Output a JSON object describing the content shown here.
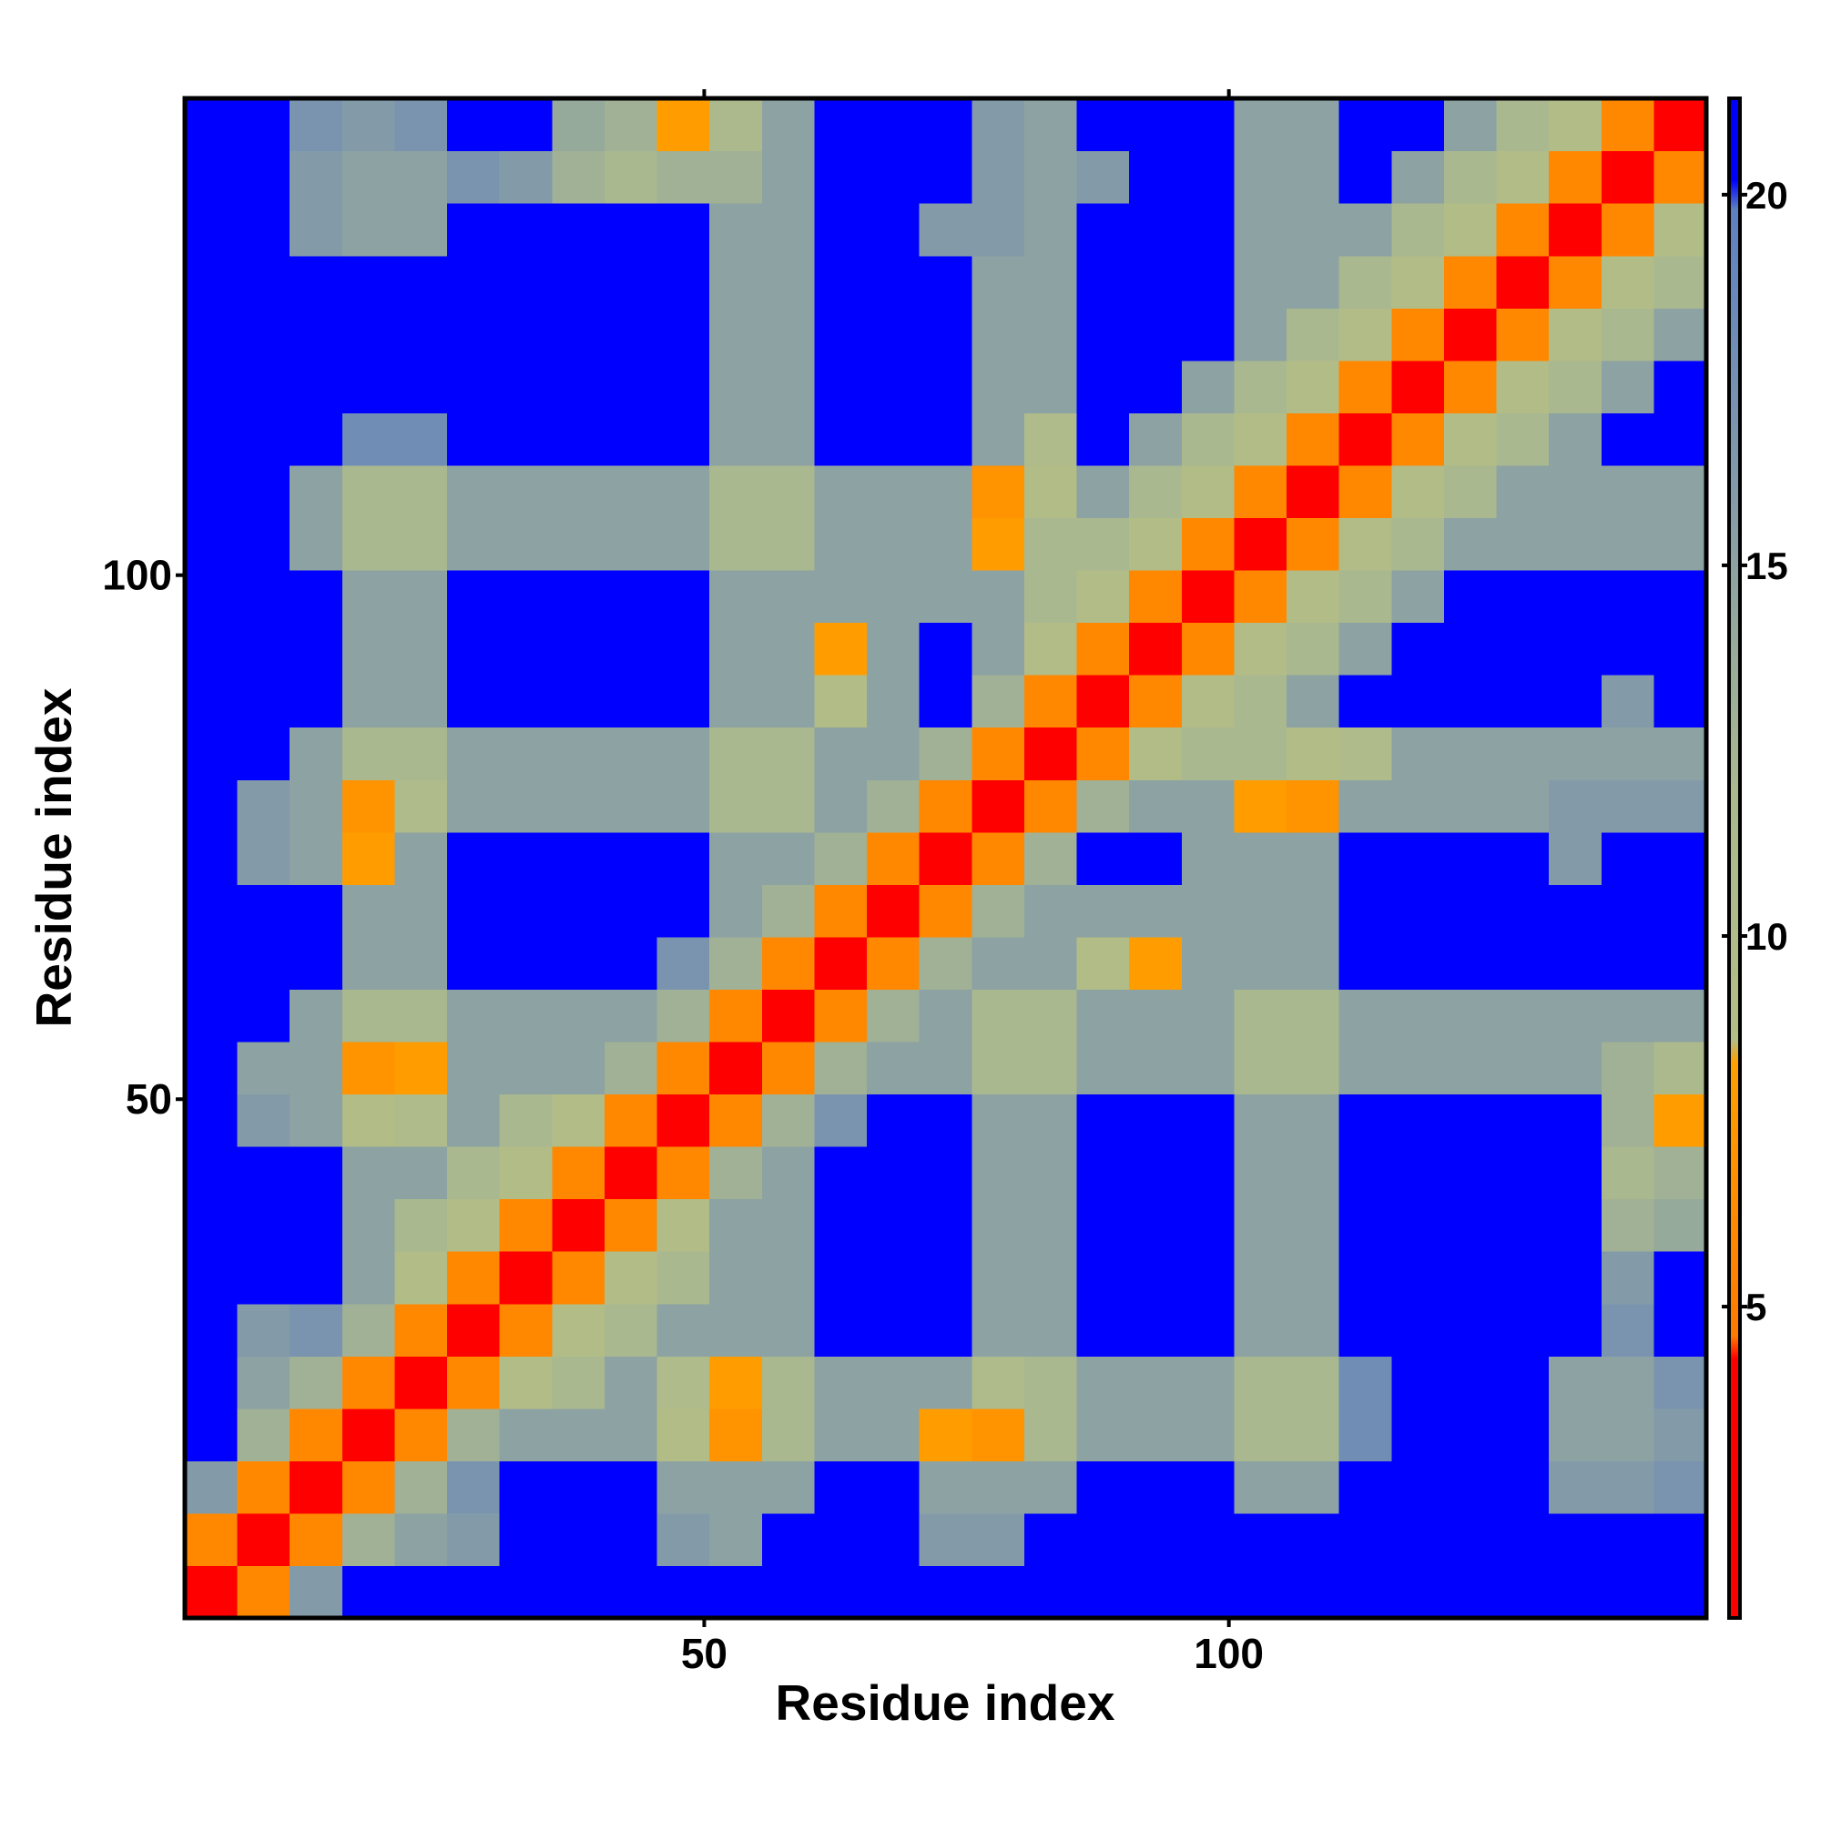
{
  "chart_data": {
    "type": "heatmap",
    "x_label": "Residue index",
    "y_label": "Residue index",
    "x": [
      3,
      8,
      13,
      18,
      23,
      28,
      33,
      38,
      43,
      48,
      53,
      58,
      63,
      68,
      73,
      78,
      83,
      88,
      93,
      98,
      103,
      108,
      113,
      118,
      123,
      128,
      133,
      138,
      143
    ],
    "y": [
      3,
      8,
      13,
      18,
      23,
      28,
      33,
      38,
      43,
      48,
      53,
      58,
      63,
      68,
      73,
      78,
      83,
      88,
      93,
      98,
      103,
      108,
      113,
      118,
      123,
      128,
      133,
      138,
      143
    ],
    "xlim": [
      0.5,
      145.5
    ],
    "ylim": [
      0.5,
      145.5
    ],
    "xticks": [
      50,
      100
    ],
    "yticks": [
      50,
      100
    ],
    "zlim": [
      0.8,
      21.3
    ],
    "zticks": [
      5,
      10,
      15,
      20
    ],
    "colorscale": [
      [
        0.8,
        "#ff0000"
      ],
      [
        4.3,
        "#ff0000"
      ],
      [
        4.6,
        "#ff7a00"
      ],
      [
        8.3,
        "#ffa000"
      ],
      [
        8.6,
        "#b3bd86"
      ],
      [
        12,
        "#a9b88f"
      ],
      [
        19.8,
        "#5f80c2"
      ],
      [
        20.2,
        "#0000ff"
      ],
      [
        21.3,
        "#0000ff"
      ]
    ],
    "z": [
      [
        3,
        6,
        16,
        21,
        21,
        21,
        21,
        21,
        21,
        21,
        21,
        21,
        21,
        21,
        21,
        21,
        21,
        21,
        21,
        21,
        21,
        21,
        21,
        21,
        21,
        21,
        21,
        21,
        21
      ],
      [
        6,
        3,
        6,
        13,
        15,
        16,
        21,
        21,
        21,
        16,
        15,
        21,
        21,
        21,
        16,
        16,
        21,
        21,
        21,
        21,
        21,
        21,
        21,
        21,
        21,
        21,
        21,
        21,
        21
      ],
      [
        16,
        6,
        3,
        6,
        13,
        17,
        21,
        21,
        21,
        15,
        15,
        15,
        21,
        21,
        15,
        15,
        15,
        21,
        21,
        21,
        15,
        15,
        21,
        21,
        21,
        21,
        16,
        16,
        17
      ],
      [
        21,
        13,
        6,
        3,
        6,
        13,
        15,
        15,
        15,
        9,
        7,
        12,
        15,
        15,
        8,
        7,
        12,
        15,
        15,
        15,
        12,
        12,
        18,
        21,
        21,
        21,
        15,
        15,
        16
      ],
      [
        21,
        15,
        13,
        6,
        3,
        6,
        9,
        12,
        15,
        10,
        8,
        12,
        15,
        15,
        15,
        10,
        12,
        15,
        15,
        15,
        12,
        12,
        18,
        21,
        21,
        21,
        15,
        15,
        17
      ],
      [
        21,
        16,
        17,
        13,
        6,
        3,
        6,
        9,
        12,
        15,
        15,
        15,
        21,
        21,
        21,
        15,
        15,
        21,
        21,
        21,
        15,
        15,
        21,
        21,
        21,
        21,
        21,
        17,
        21
      ],
      [
        21,
        21,
        21,
        15,
        9,
        6,
        3,
        6,
        9,
        12,
        15,
        15,
        21,
        21,
        21,
        15,
        15,
        21,
        21,
        21,
        15,
        15,
        21,
        21,
        21,
        21,
        21,
        16,
        21
      ],
      [
        21,
        21,
        21,
        15,
        12,
        9,
        6,
        3,
        6,
        9,
        15,
        15,
        21,
        21,
        21,
        15,
        15,
        21,
        21,
        21,
        15,
        15,
        21,
        21,
        21,
        21,
        21,
        13,
        14
      ],
      [
        21,
        21,
        21,
        15,
        15,
        12,
        9,
        6,
        3,
        6,
        13,
        15,
        21,
        21,
        21,
        15,
        15,
        21,
        21,
        21,
        15,
        15,
        21,
        21,
        21,
        21,
        21,
        12,
        13
      ],
      [
        21,
        16,
        15,
        9,
        10,
        15,
        12,
        9,
        6,
        3,
        6,
        13,
        17,
        21,
        21,
        15,
        15,
        21,
        21,
        21,
        15,
        15,
        21,
        21,
        21,
        21,
        21,
        13,
        8
      ],
      [
        21,
        15,
        15,
        7,
        8,
        15,
        15,
        15,
        13,
        6,
        3,
        6,
        13,
        15,
        15,
        12,
        12,
        15,
        15,
        15,
        12,
        12,
        15,
        15,
        15,
        15,
        15,
        13,
        11
      ],
      [
        21,
        21,
        15,
        12,
        12,
        15,
        15,
        15,
        15,
        13,
        6,
        3,
        6,
        13,
        15,
        12,
        12,
        15,
        15,
        15,
        12,
        12,
        15,
        15,
        15,
        15,
        15,
        15,
        15
      ],
      [
        21,
        21,
        21,
        15,
        15,
        21,
        21,
        21,
        21,
        17,
        13,
        6,
        3,
        6,
        13,
        15,
        15,
        9,
        8,
        15,
        15,
        15,
        21,
        21,
        21,
        21,
        21,
        21,
        21
      ],
      [
        21,
        21,
        21,
        15,
        15,
        21,
        21,
        21,
        21,
        21,
        15,
        13,
        6,
        3,
        6,
        13,
        15,
        15,
        15,
        15,
        15,
        15,
        21,
        21,
        21,
        21,
        21,
        21,
        21
      ],
      [
        21,
        16,
        15,
        8,
        15,
        21,
        21,
        21,
        21,
        21,
        15,
        15,
        13,
        6,
        3,
        6,
        13,
        21,
        21,
        15,
        15,
        15,
        21,
        21,
        21,
        21,
        16,
        21,
        21
      ],
      [
        21,
        16,
        15,
        7,
        10,
        15,
        15,
        15,
        15,
        15,
        12,
        12,
        15,
        13,
        6,
        3,
        6,
        13,
        15,
        15,
        8,
        7,
        15,
        15,
        15,
        15,
        16,
        16,
        16
      ],
      [
        21,
        21,
        15,
        12,
        12,
        15,
        15,
        15,
        15,
        15,
        12,
        12,
        15,
        15,
        13,
        6,
        3,
        6,
        9,
        12,
        12,
        9,
        10,
        15,
        15,
        15,
        15,
        15,
        15
      ],
      [
        21,
        21,
        21,
        15,
        15,
        21,
        21,
        21,
        21,
        21,
        15,
        15,
        9,
        15,
        21,
        13,
        6,
        3,
        6,
        9,
        12,
        15,
        21,
        21,
        21,
        21,
        21,
        16,
        21
      ],
      [
        21,
        21,
        21,
        15,
        15,
        21,
        21,
        21,
        21,
        21,
        15,
        15,
        8,
        15,
        21,
        15,
        9,
        6,
        3,
        6,
        9,
        12,
        15,
        21,
        21,
        21,
        21,
        21,
        21
      ],
      [
        21,
        21,
        21,
        15,
        15,
        21,
        21,
        21,
        21,
        21,
        15,
        15,
        15,
        15,
        15,
        15,
        12,
        9,
        6,
        3,
        6,
        9,
        12,
        15,
        21,
        21,
        21,
        21,
        21
      ],
      [
        21,
        21,
        15,
        12,
        12,
        15,
        15,
        15,
        15,
        15,
        12,
        12,
        15,
        15,
        15,
        8,
        12,
        12,
        9,
        6,
        3,
        6,
        9,
        12,
        15,
        15,
        15,
        15,
        15
      ],
      [
        21,
        21,
        15,
        12,
        12,
        15,
        15,
        15,
        15,
        15,
        12,
        12,
        15,
        15,
        15,
        7,
        9,
        15,
        12,
        9,
        6,
        3,
        6,
        9,
        12,
        15,
        15,
        15,
        15
      ],
      [
        21,
        21,
        21,
        18,
        18,
        21,
        21,
        21,
        21,
        21,
        15,
        15,
        21,
        21,
        21,
        15,
        10,
        21,
        15,
        12,
        9,
        6,
        3,
        6,
        9,
        12,
        15,
        21,
        21
      ],
      [
        21,
        21,
        21,
        21,
        21,
        21,
        21,
        21,
        21,
        21,
        15,
        15,
        21,
        21,
        21,
        15,
        15,
        21,
        21,
        15,
        12,
        9,
        6,
        3,
        6,
        9,
        12,
        15,
        21
      ],
      [
        21,
        21,
        21,
        21,
        21,
        21,
        21,
        21,
        21,
        21,
        15,
        15,
        21,
        21,
        21,
        15,
        15,
        21,
        21,
        21,
        15,
        12,
        9,
        6,
        3,
        6,
        9,
        12,
        15
      ],
      [
        21,
        21,
        21,
        21,
        21,
        21,
        21,
        21,
        21,
        21,
        15,
        15,
        21,
        21,
        21,
        15,
        15,
        21,
        21,
        21,
        15,
        15,
        12,
        9,
        6,
        3,
        6,
        9,
        12
      ],
      [
        21,
        21,
        16,
        15,
        15,
        21,
        21,
        21,
        21,
        21,
        15,
        15,
        21,
        21,
        16,
        16,
        15,
        21,
        21,
        21,
        15,
        15,
        15,
        12,
        9,
        6,
        3,
        6,
        9
      ],
      [
        21,
        21,
        16,
        15,
        15,
        17,
        16,
        13,
        12,
        13,
        13,
        15,
        21,
        21,
        21,
        16,
        15,
        16,
        21,
        21,
        15,
        15,
        21,
        15,
        12,
        9,
        6,
        3,
        6
      ],
      [
        21,
        21,
        17,
        16,
        17,
        21,
        21,
        14,
        13,
        8,
        11,
        15,
        21,
        21,
        21,
        16,
        15,
        21,
        21,
        21,
        15,
        15,
        21,
        21,
        15,
        12,
        9,
        6,
        3
      ]
    ]
  }
}
